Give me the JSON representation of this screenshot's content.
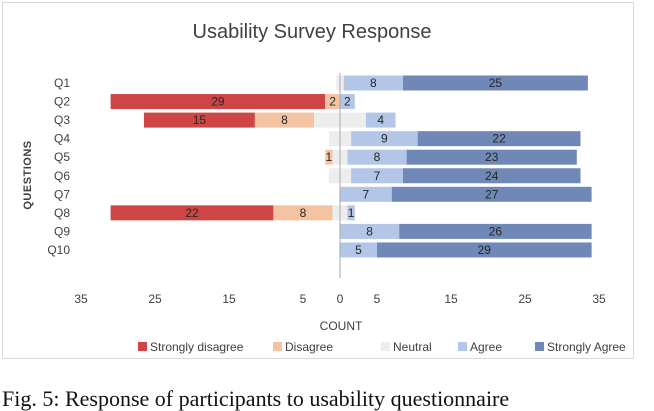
{
  "chart_data": {
    "type": "bar",
    "orientation": "horizontal",
    "stacking": "diverging",
    "title": "Usability Survey Response",
    "xlabel": "COUNT",
    "ylabel": "QUESTIONS",
    "xlim": [
      -35,
      35
    ],
    "xticks": [
      -35,
      -25,
      -15,
      -5,
      0,
      5,
      15,
      25,
      35
    ],
    "xtick_labels": [
      "35",
      "25",
      "15",
      "5",
      "0",
      "5",
      "15",
      "25",
      "35"
    ],
    "categories": [
      "Q1",
      "Q2",
      "Q3",
      "Q4",
      "Q5",
      "Q6",
      "Q7",
      "Q8",
      "Q9",
      "Q10"
    ],
    "series": [
      {
        "name": "Strongly disagree",
        "color": "#cf4545",
        "values": [
          0,
          29,
          15,
          0,
          0,
          0,
          0,
          22,
          0,
          0
        ],
        "labels": [
          "",
          "29",
          "15",
          "",
          "",
          "",
          "",
          "22",
          "",
          ""
        ]
      },
      {
        "name": "Disagree",
        "color": "#f4c3a2",
        "values": [
          0,
          2,
          8,
          0,
          1,
          0,
          0,
          8,
          0,
          0
        ],
        "labels": [
          "",
          "2",
          "8",
          "",
          "1",
          "",
          "",
          "8",
          "",
          ""
        ]
      },
      {
        "name": "Neutral",
        "color": "#ededed",
        "values": [
          1,
          0,
          7,
          3,
          2,
          3,
          0,
          2,
          0,
          0
        ],
        "labels": [
          "",
          "",
          "",
          "",
          "",
          "",
          "",
          "",
          "",
          ""
        ]
      },
      {
        "name": "Agree",
        "color": "#b4c6e7",
        "values": [
          8,
          2,
          4,
          9,
          8,
          7,
          7,
          1,
          8,
          5
        ],
        "labels": [
          "8",
          "2",
          "4",
          "9",
          "8",
          "7",
          "7",
          "1",
          "8",
          "5"
        ]
      },
      {
        "name": "Strongly Agree",
        "color": "#6f88b8",
        "values": [
          25,
          0,
          0,
          22,
          23,
          24,
          27,
          0,
          26,
          29
        ],
        "labels": [
          "25",
          "",
          "",
          "22",
          "23",
          "24",
          "27",
          "",
          "26",
          "29"
        ]
      }
    ],
    "legend_position": "bottom",
    "grid": false
  },
  "caption": "Fig. 5: Response of participants to usability questionnaire"
}
